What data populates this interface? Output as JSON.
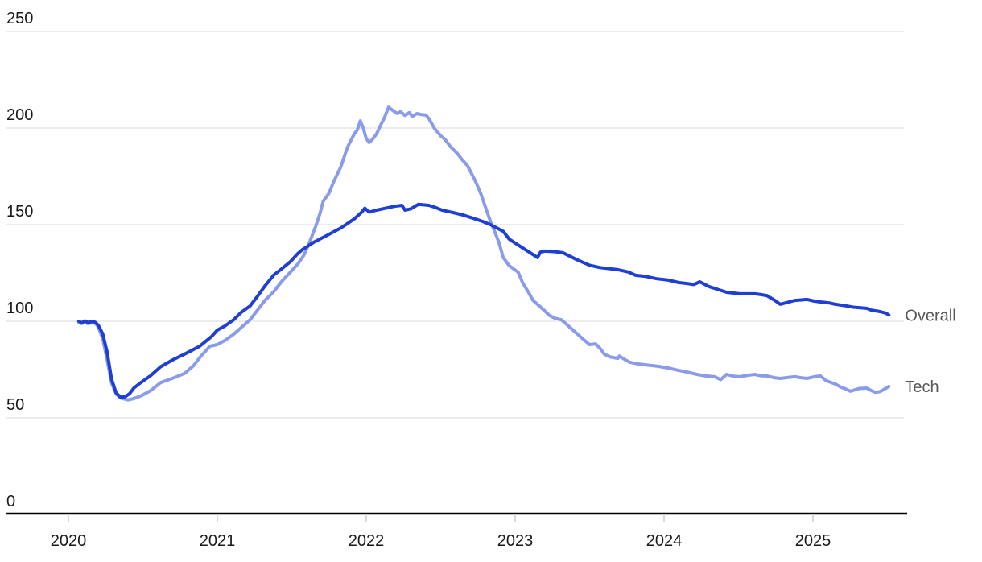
{
  "chart_data": {
    "type": "line",
    "title": "",
    "xlabel": "",
    "ylabel": "",
    "grid": true,
    "legend_position": "right-end-labels",
    "ylim": [
      0,
      250
    ],
    "xlim": [
      2019.95,
      2025.62
    ],
    "y_ticks": [
      0,
      50,
      100,
      150,
      200,
      250
    ],
    "y_tick_labels": [
      "0",
      "50",
      "100",
      "150",
      "200",
      "250"
    ],
    "x_ticks": [
      2020,
      2021,
      2022,
      2023,
      2024,
      2025
    ],
    "x_tick_labels": [
      "2020",
      "2021",
      "2022",
      "2023",
      "2024",
      "2025"
    ],
    "colors": {
      "overall_line": "#1f3ed3",
      "tech_line": "#8a9ce9",
      "grid_line": "#e6e6e6",
      "axis_line": "#000000",
      "tick_mark": "#d9d9d9",
      "tick_label": "#1a1a1a",
      "series_label": "#57575a"
    },
    "series": [
      {
        "name": "Tech",
        "color": "#8a9ce9",
        "points": [
          [
            2020.07,
            99.5
          ],
          [
            2020.09,
            98.8
          ],
          [
            2020.11,
            99.6
          ],
          [
            2020.13,
            98.8
          ],
          [
            2020.16,
            99.2
          ],
          [
            2020.18,
            99.0
          ],
          [
            2020.2,
            97.2
          ],
          [
            2020.23,
            91.0
          ],
          [
            2020.26,
            80.0
          ],
          [
            2020.29,
            68.0
          ],
          [
            2020.32,
            62.5
          ],
          [
            2020.35,
            60.3
          ],
          [
            2020.4,
            59.3
          ],
          [
            2020.44,
            60.0
          ],
          [
            2020.49,
            61.5
          ],
          [
            2020.55,
            64.0
          ],
          [
            2020.62,
            68.3
          ],
          [
            2020.7,
            70.5
          ],
          [
            2020.78,
            73.0
          ],
          [
            2020.84,
            77.0
          ],
          [
            2020.89,
            82.0
          ],
          [
            2020.95,
            87.1
          ],
          [
            2021.0,
            87.9
          ],
          [
            2021.05,
            90.0
          ],
          [
            2021.11,
            93.3
          ],
          [
            2021.16,
            96.7
          ],
          [
            2021.22,
            100.8
          ],
          [
            2021.27,
            105.8
          ],
          [
            2021.32,
            110.8
          ],
          [
            2021.38,
            115.4
          ],
          [
            2021.43,
            120.4
          ],
          [
            2021.49,
            125.4
          ],
          [
            2021.54,
            129.6
          ],
          [
            2021.58,
            134.0
          ],
          [
            2021.62,
            141.0
          ],
          [
            2021.66,
            149.0
          ],
          [
            2021.69,
            156.0
          ],
          [
            2021.71,
            162.0
          ],
          [
            2021.75,
            166.3
          ],
          [
            2021.78,
            172.0
          ],
          [
            2021.83,
            180.0
          ],
          [
            2021.86,
            187.0
          ],
          [
            2021.88,
            191.0
          ],
          [
            2021.92,
            197.0
          ],
          [
            2021.94,
            199.0
          ],
          [
            2021.96,
            203.7
          ],
          [
            2021.98,
            200.0
          ],
          [
            2022.0,
            194.5
          ],
          [
            2022.02,
            192.5
          ],
          [
            2022.04,
            194.0
          ],
          [
            2022.07,
            197.0
          ],
          [
            2022.1,
            202.0
          ],
          [
            2022.12,
            205.0
          ],
          [
            2022.15,
            210.8
          ],
          [
            2022.18,
            209.0
          ],
          [
            2022.21,
            207.5
          ],
          [
            2022.23,
            208.5
          ],
          [
            2022.26,
            206.5
          ],
          [
            2022.29,
            208.0
          ],
          [
            2022.31,
            206.0
          ],
          [
            2022.34,
            207.5
          ],
          [
            2022.37,
            207.0
          ],
          [
            2022.4,
            206.8
          ],
          [
            2022.42,
            205.0
          ],
          [
            2022.46,
            199.6
          ],
          [
            2022.5,
            196.0
          ],
          [
            2022.53,
            194.0
          ],
          [
            2022.57,
            190.0
          ],
          [
            2022.61,
            187.0
          ],
          [
            2022.64,
            184.0
          ],
          [
            2022.68,
            180.5
          ],
          [
            2022.73,
            173.0
          ],
          [
            2022.77,
            166.0
          ],
          [
            2022.81,
            157.0
          ],
          [
            2022.84,
            150.5
          ],
          [
            2022.87,
            145.0
          ],
          [
            2022.89,
            141.0
          ],
          [
            2022.92,
            133.0
          ],
          [
            2022.96,
            128.8
          ],
          [
            2023.0,
            126.5
          ],
          [
            2023.02,
            125.4
          ],
          [
            2023.05,
            120.0
          ],
          [
            2023.09,
            115.0
          ],
          [
            2023.12,
            110.8
          ],
          [
            2023.19,
            106.0
          ],
          [
            2023.23,
            103.0
          ],
          [
            2023.27,
            101.5
          ],
          [
            2023.31,
            100.8
          ],
          [
            2023.34,
            98.8
          ],
          [
            2023.38,
            96.0
          ],
          [
            2023.42,
            93.3
          ],
          [
            2023.46,
            90.5
          ],
          [
            2023.5,
            87.9
          ],
          [
            2023.54,
            88.3
          ],
          [
            2023.57,
            86.0
          ],
          [
            2023.6,
            82.9
          ],
          [
            2023.64,
            81.5
          ],
          [
            2023.69,
            80.8
          ],
          [
            2023.7,
            82.0
          ],
          [
            2023.74,
            80.0
          ],
          [
            2023.77,
            78.8
          ],
          [
            2023.82,
            78.0
          ],
          [
            2023.87,
            77.5
          ],
          [
            2023.96,
            76.7
          ],
          [
            2024.03,
            75.8
          ],
          [
            2024.1,
            74.5
          ],
          [
            2024.15,
            73.8
          ],
          [
            2024.22,
            72.5
          ],
          [
            2024.27,
            71.8
          ],
          [
            2024.34,
            71.3
          ],
          [
            2024.38,
            69.8
          ],
          [
            2024.42,
            72.5
          ],
          [
            2024.47,
            71.5
          ],
          [
            2024.51,
            71.3
          ],
          [
            2024.56,
            72.0
          ],
          [
            2024.61,
            72.5
          ],
          [
            2024.65,
            71.8
          ],
          [
            2024.69,
            71.7
          ],
          [
            2024.74,
            70.8
          ],
          [
            2024.78,
            70.4
          ],
          [
            2024.84,
            71.0
          ],
          [
            2024.88,
            71.3
          ],
          [
            2024.92,
            70.8
          ],
          [
            2024.96,
            70.4
          ],
          [
            2025.01,
            71.3
          ],
          [
            2025.05,
            71.7
          ],
          [
            2025.09,
            69.2
          ],
          [
            2025.15,
            67.5
          ],
          [
            2025.19,
            65.8
          ],
          [
            2025.22,
            65.0
          ],
          [
            2025.25,
            63.8
          ],
          [
            2025.27,
            64.2
          ],
          [
            2025.31,
            65.2
          ],
          [
            2025.36,
            65.4
          ],
          [
            2025.39,
            64.2
          ],
          [
            2025.42,
            63.2
          ],
          [
            2025.45,
            63.6
          ],
          [
            2025.49,
            65.3
          ],
          [
            2025.51,
            66.3
          ]
        ]
      },
      {
        "name": "Overall",
        "color": "#1f3ed3",
        "points": [
          [
            2020.07,
            100.0
          ],
          [
            2020.09,
            99.2
          ],
          [
            2020.11,
            100.2
          ],
          [
            2020.13,
            99.4
          ],
          [
            2020.16,
            99.8
          ],
          [
            2020.18,
            99.5
          ],
          [
            2020.2,
            98.0
          ],
          [
            2020.23,
            93.5
          ],
          [
            2020.26,
            84.0
          ],
          [
            2020.29,
            70.0
          ],
          [
            2020.32,
            63.0
          ],
          [
            2020.35,
            60.7
          ],
          [
            2020.38,
            60.9
          ],
          [
            2020.41,
            62.5
          ],
          [
            2020.44,
            65.5
          ],
          [
            2020.49,
            68.5
          ],
          [
            2020.55,
            71.7
          ],
          [
            2020.62,
            76.5
          ],
          [
            2020.7,
            80.0
          ],
          [
            2020.78,
            83.0
          ],
          [
            2020.88,
            87.0
          ],
          [
            2020.96,
            92.0
          ],
          [
            2021.0,
            95.4
          ],
          [
            2021.05,
            97.5
          ],
          [
            2021.11,
            100.8
          ],
          [
            2021.16,
            104.6
          ],
          [
            2021.22,
            107.9
          ],
          [
            2021.27,
            112.9
          ],
          [
            2021.32,
            118.3
          ],
          [
            2021.38,
            124.0
          ],
          [
            2021.43,
            127.0
          ],
          [
            2021.49,
            130.8
          ],
          [
            2021.54,
            135.0
          ],
          [
            2021.57,
            137.0
          ],
          [
            2021.65,
            141.0
          ],
          [
            2021.74,
            144.6
          ],
          [
            2021.83,
            148.3
          ],
          [
            2021.92,
            153.0
          ],
          [
            2021.97,
            156.5
          ],
          [
            2021.99,
            158.5
          ],
          [
            2022.02,
            156.5
          ],
          [
            2022.07,
            157.5
          ],
          [
            2022.13,
            158.5
          ],
          [
            2022.19,
            159.5
          ],
          [
            2022.24,
            160.0
          ],
          [
            2022.26,
            157.5
          ],
          [
            2022.3,
            158.2
          ],
          [
            2022.35,
            160.5
          ],
          [
            2022.42,
            160.0
          ],
          [
            2022.46,
            159.0
          ],
          [
            2022.51,
            157.5
          ],
          [
            2022.57,
            156.5
          ],
          [
            2022.65,
            155.0
          ],
          [
            2022.73,
            153.0
          ],
          [
            2022.78,
            151.7
          ],
          [
            2022.84,
            149.8
          ],
          [
            2022.92,
            146.5
          ],
          [
            2022.96,
            142.5
          ],
          [
            2023.03,
            139.0
          ],
          [
            2023.08,
            136.5
          ],
          [
            2023.12,
            134.5
          ],
          [
            2023.15,
            133.0
          ],
          [
            2023.17,
            135.8
          ],
          [
            2023.2,
            136.3
          ],
          [
            2023.27,
            136.0
          ],
          [
            2023.32,
            135.5
          ],
          [
            2023.41,
            132.0
          ],
          [
            2023.5,
            129.0
          ],
          [
            2023.57,
            127.8
          ],
          [
            2023.69,
            126.7
          ],
          [
            2023.76,
            125.5
          ],
          [
            2023.81,
            123.8
          ],
          [
            2023.87,
            123.3
          ],
          [
            2023.95,
            122.0
          ],
          [
            2024.03,
            121.3
          ],
          [
            2024.1,
            120.0
          ],
          [
            2024.15,
            119.6
          ],
          [
            2024.2,
            119.0
          ],
          [
            2024.24,
            120.4
          ],
          [
            2024.3,
            118.0
          ],
          [
            2024.34,
            117.0
          ],
          [
            2024.42,
            115.0
          ],
          [
            2024.51,
            114.2
          ],
          [
            2024.61,
            114.2
          ],
          [
            2024.65,
            113.8
          ],
          [
            2024.69,
            113.3
          ],
          [
            2024.74,
            111.0
          ],
          [
            2024.78,
            108.8
          ],
          [
            2024.84,
            110.0
          ],
          [
            2024.88,
            110.8
          ],
          [
            2024.96,
            111.3
          ],
          [
            2025.01,
            110.4
          ],
          [
            2025.05,
            110.0
          ],
          [
            2025.11,
            109.5
          ],
          [
            2025.15,
            108.8
          ],
          [
            2025.22,
            108.0
          ],
          [
            2025.27,
            107.3
          ],
          [
            2025.36,
            106.7
          ],
          [
            2025.39,
            105.8
          ],
          [
            2025.45,
            105.0
          ],
          [
            2025.49,
            104.2
          ],
          [
            2025.51,
            103.2
          ]
        ]
      }
    ]
  }
}
